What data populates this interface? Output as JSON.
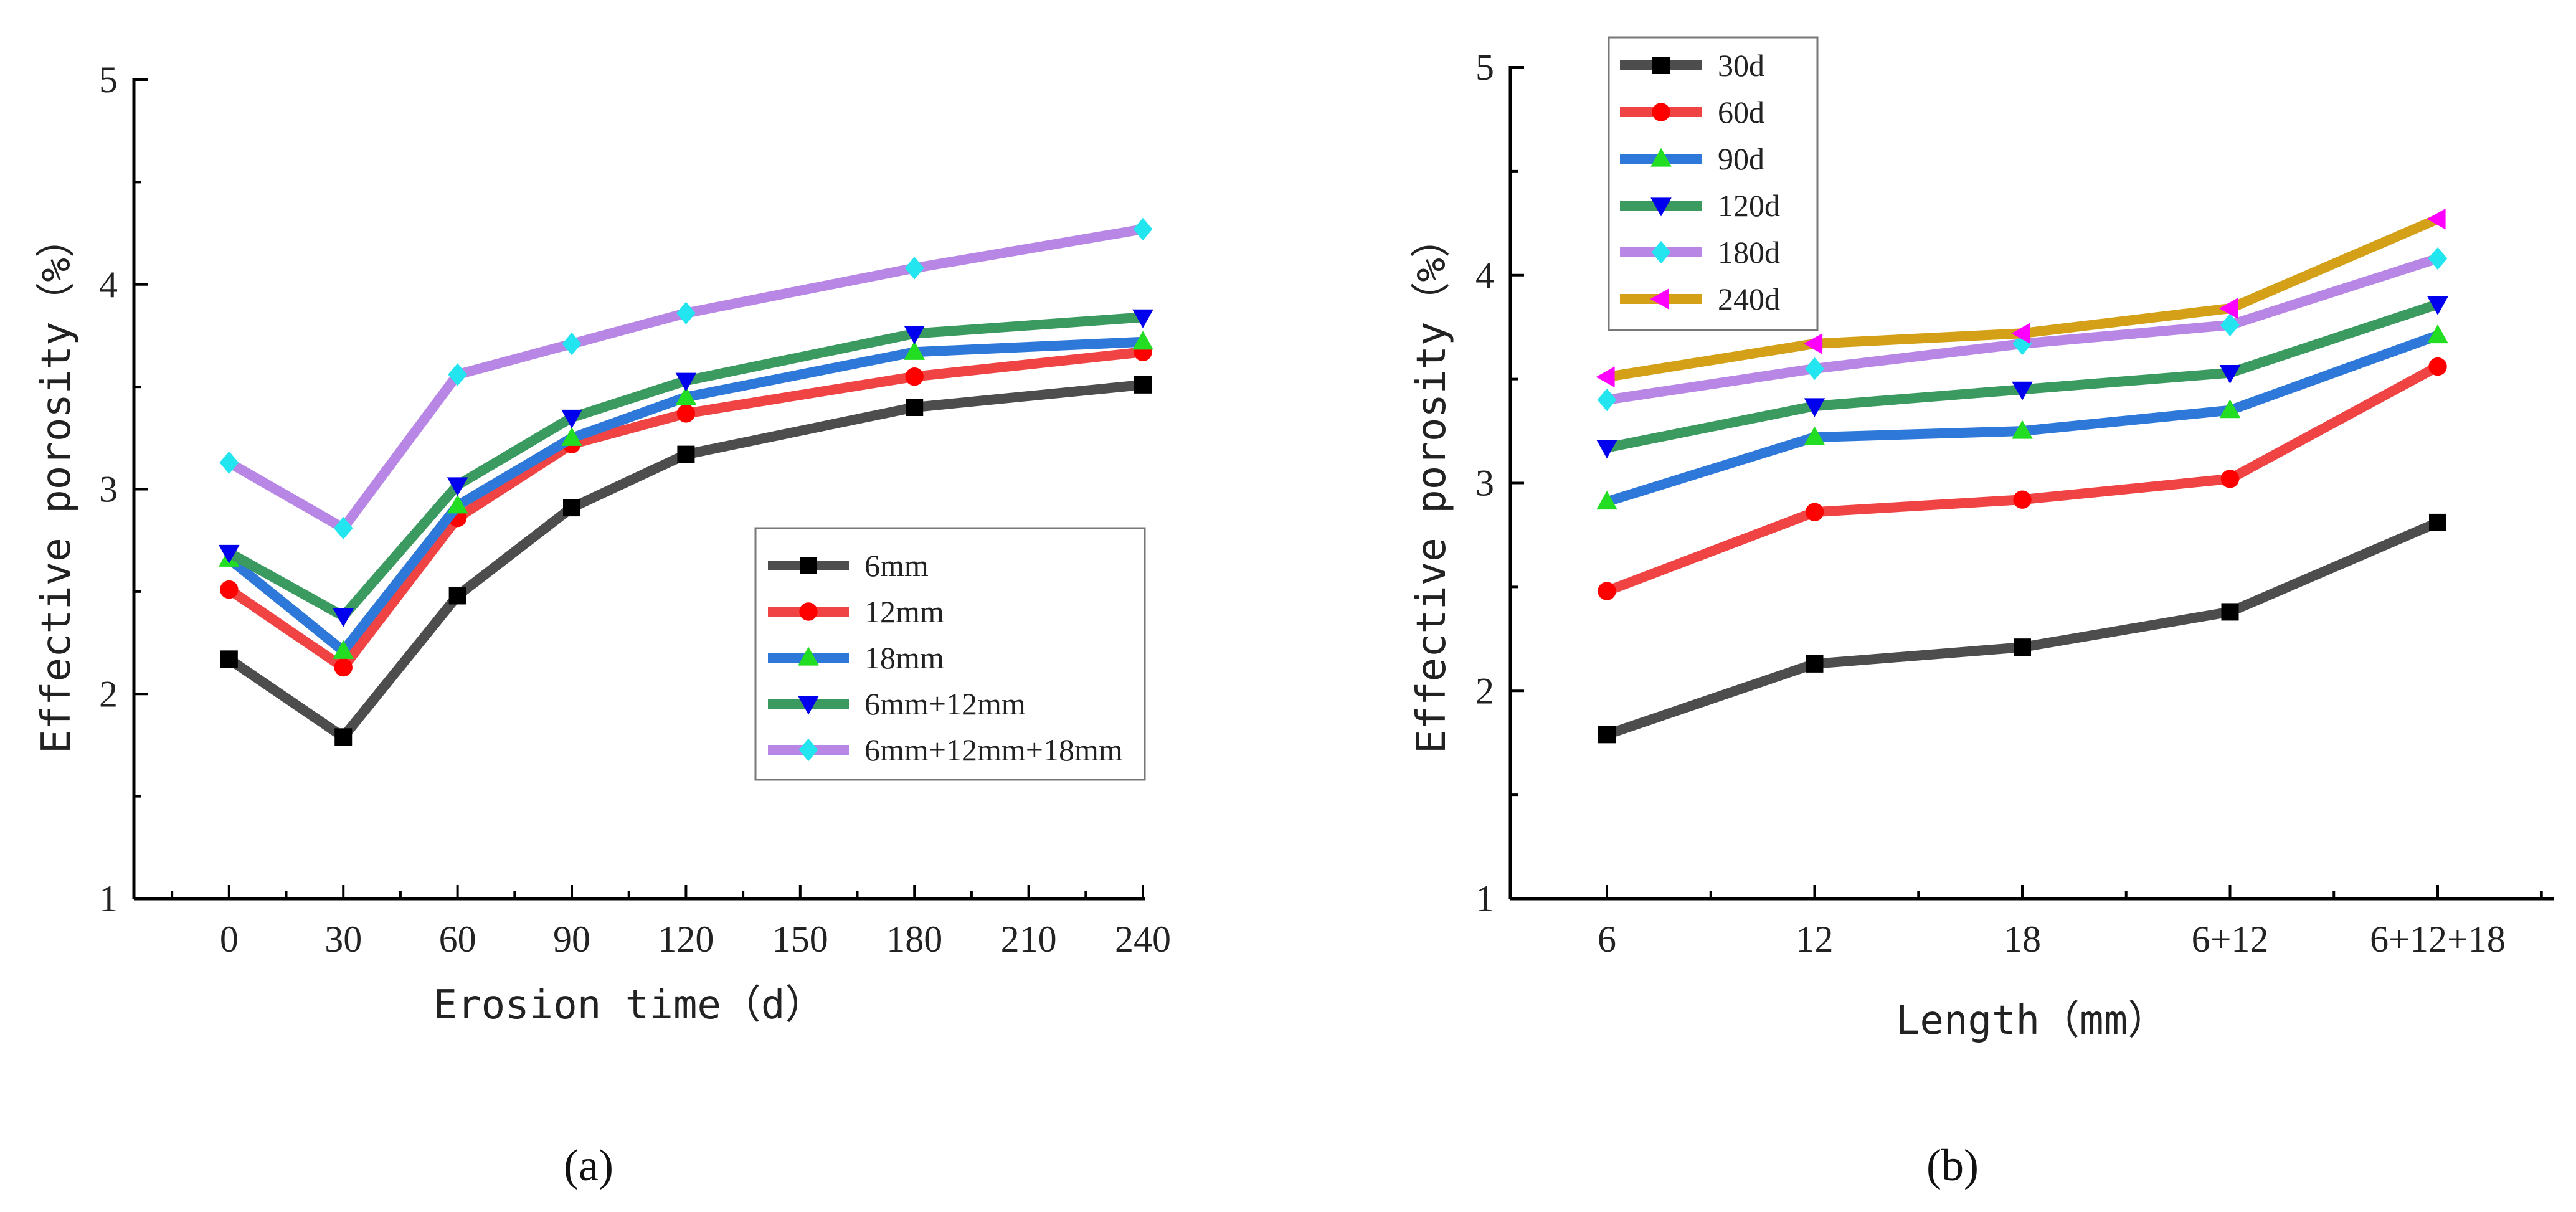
{
  "chart_data": [
    {
      "type": "line",
      "panel": "(a)",
      "xlabel": "Erosion time（d）",
      "ylabel": "Effective porosity（%）",
      "x": [
        0,
        30,
        60,
        90,
        120,
        180,
        240
      ],
      "xticks": [
        "0",
        "30",
        "60",
        "90",
        "120",
        "150",
        "180",
        "210",
        "240"
      ],
      "xtick_values": [
        0,
        30,
        60,
        90,
        120,
        150,
        180,
        210,
        240
      ],
      "xlim": [
        -25,
        240
      ],
      "ylim": [
        1,
        5
      ],
      "yticks": [
        "1",
        "2",
        "3",
        "4",
        "5"
      ],
      "grid": false,
      "legend_position": "lower-right",
      "series": [
        {
          "name": "6mm",
          "color": "#4d4d4d",
          "marker": "square",
          "marker_color": "#000000",
          "values": [
            2.17,
            1.79,
            2.48,
            2.91,
            3.17,
            3.4,
            3.51
          ]
        },
        {
          "name": "12mm",
          "color": "#f04444",
          "marker": "circle",
          "marker_color": "#ff0000",
          "values": [
            2.51,
            2.13,
            2.86,
            3.22,
            3.37,
            3.55,
            3.67
          ]
        },
        {
          "name": "18mm",
          "color": "#2d78d8",
          "marker": "triangle-up",
          "marker_color": "#22dd22",
          "values": [
            2.66,
            2.21,
            2.92,
            3.25,
            3.45,
            3.67,
            3.72
          ]
        },
        {
          "name": "6mm+12mm",
          "color": "#3a9a60",
          "marker": "triangle-down",
          "marker_color": "#0000ee",
          "values": [
            2.69,
            2.38,
            3.02,
            3.35,
            3.53,
            3.76,
            3.84
          ]
        },
        {
          "name": "6mm+12mm+18mm",
          "color": "#b887e6",
          "marker": "diamond",
          "marker_color": "#22e5f0",
          "values": [
            3.13,
            2.81,
            3.56,
            3.71,
            3.86,
            4.08,
            4.27
          ]
        }
      ]
    },
    {
      "type": "line",
      "panel": "(b)",
      "xlabel": "Length（mm）",
      "ylabel": "Effective porosity（%）",
      "categories": [
        "6",
        "12",
        "18",
        "6+12",
        "6+12+18"
      ],
      "ylim": [
        1,
        5
      ],
      "yticks": [
        "1",
        "2",
        "3",
        "4",
        "5"
      ],
      "grid": false,
      "legend_position": "top-left",
      "series": [
        {
          "name": "30d",
          "color": "#4d4d4d",
          "marker": "square",
          "marker_color": "#000000",
          "values": [
            1.79,
            2.13,
            2.21,
            2.38,
            2.81
          ]
        },
        {
          "name": "60d",
          "color": "#f04444",
          "marker": "circle",
          "marker_color": "#ff0000",
          "values": [
            2.48,
            2.86,
            2.92,
            3.02,
            3.56
          ]
        },
        {
          "name": "90d",
          "color": "#2d78d8",
          "marker": "triangle-up",
          "marker_color": "#22dd22",
          "values": [
            2.91,
            3.22,
            3.25,
            3.35,
            3.71
          ]
        },
        {
          "name": "120d",
          "color": "#3a9a60",
          "marker": "triangle-down",
          "marker_color": "#0000ee",
          "values": [
            3.17,
            3.37,
            3.45,
            3.53,
            3.86
          ]
        },
        {
          "name": "180d",
          "color": "#b887e6",
          "marker": "diamond",
          "marker_color": "#22e5f0",
          "values": [
            3.4,
            3.55,
            3.67,
            3.76,
            4.08
          ]
        },
        {
          "name": "240d",
          "color": "#d4a017",
          "marker": "triangle-left",
          "marker_color": "#ff00ff",
          "values": [
            3.51,
            3.67,
            3.72,
            3.84,
            4.27
          ]
        }
      ]
    }
  ]
}
